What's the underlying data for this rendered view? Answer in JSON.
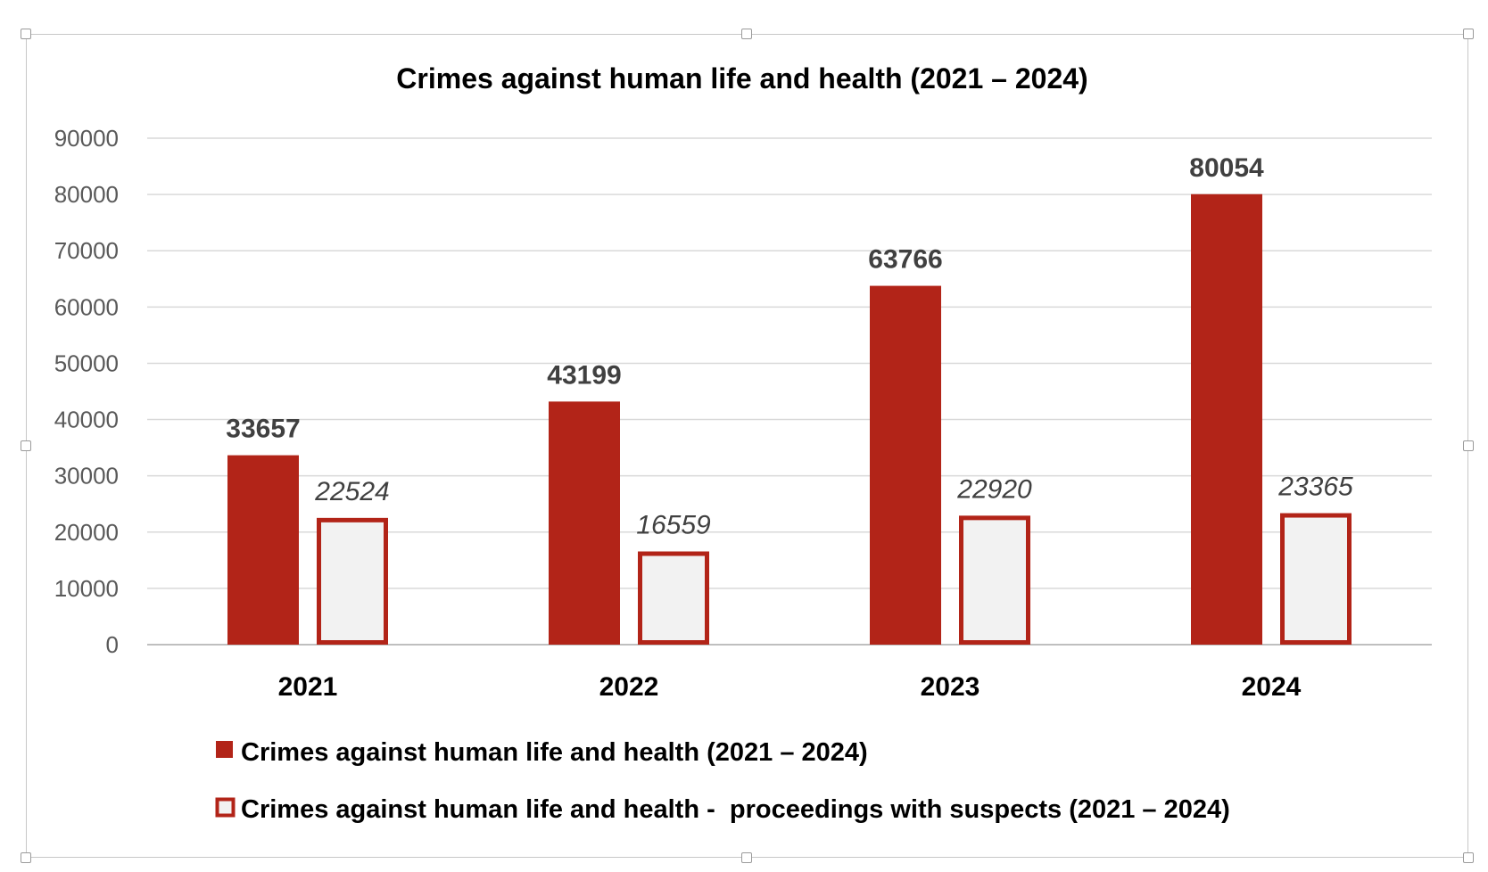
{
  "chart_data": {
    "type": "bar",
    "title": "Crimes against human life and health (2021 – 2024)",
    "categories": [
      "2021",
      "2022",
      "2023",
      "2024"
    ],
    "series": [
      {
        "name": "Crimes against human life and health (2021 – 2024)",
        "values": [
          33657,
          43199,
          63766,
          80054
        ],
        "color": "#b22418",
        "style": "filled",
        "label_style": "bold"
      },
      {
        "name": "Crimes against human life and health -  proceedings with suspects (2021 – 2024)",
        "values": [
          22524,
          16559,
          22920,
          23365
        ],
        "color": "#b22418",
        "fill": "#f2f2f2",
        "style": "outlined",
        "label_style": "italic"
      }
    ],
    "ylim": [
      0,
      90000
    ],
    "yticks": [
      0,
      10000,
      20000,
      30000,
      40000,
      50000,
      60000,
      70000,
      80000,
      90000
    ],
    "xlabel": "",
    "ylabel": "",
    "grid": true,
    "legend": "bottom",
    "data_labels": true
  }
}
